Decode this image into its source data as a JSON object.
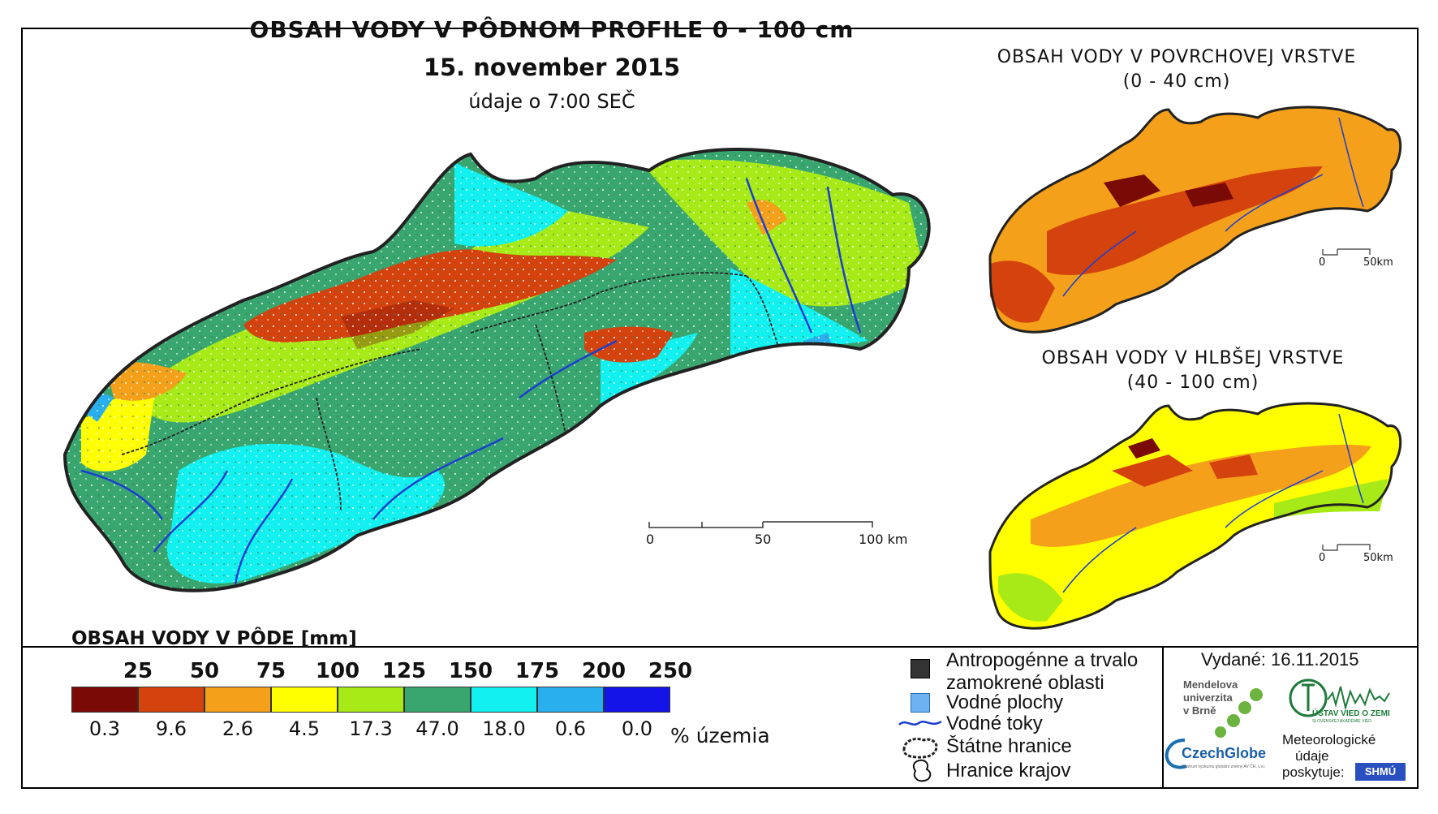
{
  "title": "OBSAH VODY V PÔDNOM PROFILE 0 - 100 cm",
  "date": "15. november 2015",
  "time_note": "údaje o 7:00 SEČ",
  "inset_top": {
    "line1": "OBSAH VODY V POVRCHOVEJ VRSTVE",
    "line2": "(0 - 40 cm)"
  },
  "inset_bottom": {
    "line1": "OBSAH VODY V HLBŠEJ VRSTVE",
    "line2": "(40 - 100 cm)"
  },
  "scale_main": {
    "labels": [
      "0",
      "50",
      "100 km"
    ]
  },
  "scale_inset": {
    "labels": [
      "0",
      "50km"
    ]
  },
  "legend": {
    "title": "OBSAH VODY V PÔDE [mm]",
    "breaks": [
      "25",
      "50",
      "75",
      "100",
      "125",
      "150",
      "175",
      "200",
      "250"
    ],
    "colors": [
      "#7a0a06",
      "#d4430e",
      "#f5a01a",
      "#ffff00",
      "#a7ea17",
      "#3aa66f",
      "#13f0f0",
      "#2aafee",
      "#1414e8"
    ],
    "percents": [
      "0.3",
      "9.6",
      "2.6",
      "4.5",
      "17.3",
      "47.0",
      "18.0",
      "0.6",
      "0.0"
    ],
    "unit": "% územia"
  },
  "key": {
    "anthropogenic": "Antropogénne a trvalo",
    "anthropogenic2": "zamokrené oblasti",
    "water_bodies": "Vodné plochy",
    "rivers": "Vodné toky",
    "state_border": "Štátne hranice",
    "regions": "Hranice krajov",
    "colors": {
      "anthropogenic": "#333333",
      "water_bodies": "#6fb2f2",
      "rivers": "#1a3fcf"
    }
  },
  "issued": "Vydané: 16.11.2015",
  "credits": {
    "mendel1": "Mendelova",
    "mendel2": "univerzita",
    "mendel3": "v Brně",
    "czechglobe": "CzechGlobe",
    "czechglobe_sub": "Centrum výzkumu globální změny AV ČR, v.v.i.",
    "uvoz": "ÚSTAV VIED O ZEMI",
    "uvoz_sub": "SLOVENSKEJ AKADÉMIE VIED",
    "met1": "Meteorologické",
    "met2": "údaje",
    "met3": "poskytuje:",
    "shmu": "SHMÚ"
  }
}
